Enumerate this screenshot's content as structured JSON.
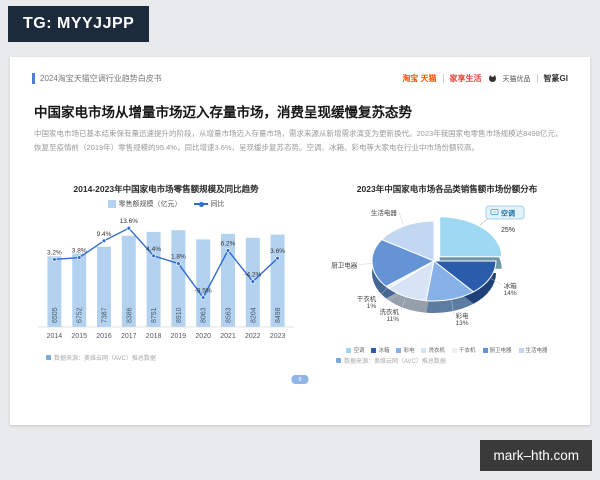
{
  "overlays": {
    "tg_badge": "TG: MYYJJPP",
    "watermark": "mark–hth.com"
  },
  "header": {
    "doc_title": "2024淘宝天猫空调行业趋势白皮书",
    "logos": {
      "taobao_tmall": "淘宝 天猫",
      "jiaxiang": "家享生活",
      "tmall_youpin": "天猫优品",
      "zhizhuan": "智篆GI"
    }
  },
  "main": {
    "title": "中国家电市场从增量市场迈入存量市场，消费呈现缓慢复苏态势",
    "paragraph": "中国家电市场已基本结束保有量迅速提升的阶段，从增量市场迈入存量市场，需求来源从新增需求演变为更新换代。2023年我国家电零售市场规模达8498亿元，恢复至疫情前（2019年）零售规模的95.4%，同比增速3.6%，呈现缓步复苏态势。空调、冰箱、彩电等大家电在行业中市场份额较高。",
    "page_number": "8"
  },
  "chart_data": [
    {
      "type": "bar",
      "title": "2014-2023年中国家电市场零售额规模及同比趋势",
      "legend": [
        "零售额规模（亿元）",
        "同比"
      ],
      "categories": [
        "2014",
        "2015",
        "2016",
        "2017",
        "2018",
        "2019",
        "2020",
        "2021",
        "2022",
        "2023"
      ],
      "series": [
        {
          "name": "零售额规模（亿元）",
          "values": [
            6505,
            6752,
            7387,
            8386,
            8751,
            8910,
            8063,
            8563,
            8204,
            8498
          ]
        },
        {
          "name": "同比",
          "values": [
            3.2,
            3.8,
            9.4,
            13.6,
            4.4,
            1.8,
            -9.5,
            6.2,
            -4.2,
            3.6
          ],
          "labels": [
            "3.2%",
            "3.8%",
            "9.4%",
            "13.6%",
            "4.4%",
            "1.8%",
            "-9.5%",
            "6.2%",
            "-4.2%",
            "3.6%"
          ]
        }
      ],
      "ylim": [
        0,
        9200
      ],
      "yoy_range": [
        -12,
        16
      ],
      "source_note": "数据来源：奥维云网（AVC）推总数据"
    },
    {
      "type": "pie",
      "title": "2023年中国家电市场各品类销售额市场份额分布",
      "slices": [
        {
          "name": "生活电器",
          "value": 16,
          "label": "",
          "color": "#c2d8f2"
        },
        {
          "name": "厨卫电器",
          "value": 20,
          "label": "",
          "color": "#6493d6"
        },
        {
          "name": "干衣机",
          "value": 1,
          "label": "1%",
          "color": "#e8f0fb"
        },
        {
          "name": "洗衣机",
          "value": 11,
          "label": "11%",
          "color": "#d6e4f6"
        },
        {
          "name": "彩电",
          "value": 13,
          "label": "13%",
          "color": "#85b1e6"
        },
        {
          "name": "冰箱",
          "value": 14,
          "label": "14%",
          "color": "#2b5cab"
        },
        {
          "name": "空调",
          "value": 25,
          "label": "25%",
          "color": "#9ed8f2",
          "highlight": true
        }
      ],
      "source_note": "数据来源：奥维云网（AVC）推总数据"
    }
  ]
}
